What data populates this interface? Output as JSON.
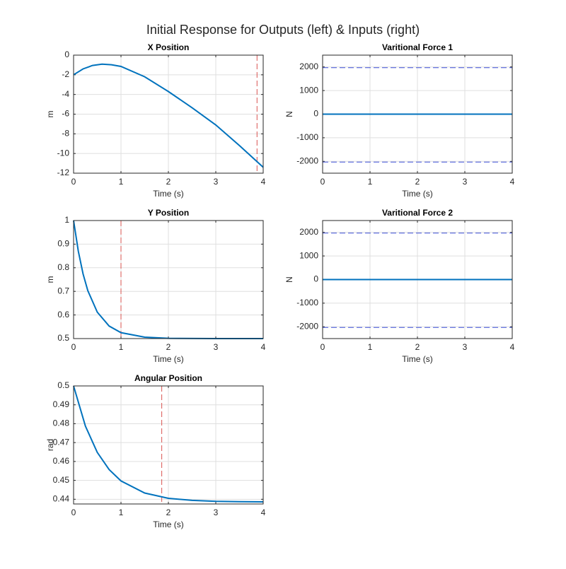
{
  "title": "Initial Response for Outputs (left) & Inputs (right)",
  "chart_data": [
    {
      "type": "line",
      "title": "X Position",
      "xlabel": "Time (s)",
      "ylabel": "m",
      "x": [
        0,
        0.2,
        0.4,
        0.6,
        0.8,
        1,
        1.5,
        2,
        2.5,
        3,
        3.5,
        4
      ],
      "series": [
        {
          "color": "#0072bd",
          "values": [
            -2,
            -1.4,
            -1.05,
            -0.92,
            -0.98,
            -1.15,
            -2.2,
            -3.7,
            -5.35,
            -7.1,
            -9.2,
            -11.4
          ]
        }
      ],
      "reference_lines": [
        {
          "axis": "x",
          "value": 3.87,
          "color": "#d9534f"
        }
      ],
      "xlim": [
        0,
        4
      ],
      "ylim": [
        -12,
        0
      ],
      "xticks": [
        0,
        1,
        2,
        3,
        4
      ],
      "yticks": [
        -12,
        -10,
        -8,
        -6,
        -4,
        -2,
        0
      ],
      "grid": true
    },
    {
      "type": "line",
      "title": "Varitional Force 1",
      "xlabel": "Time (s)",
      "ylabel": "N",
      "x": [
        0,
        4
      ],
      "series": [
        {
          "color": "#0072bd",
          "values": [
            0,
            0
          ]
        }
      ],
      "reference_lines": [
        {
          "axis": "y",
          "value": 1970,
          "color": "#3f51d9"
        },
        {
          "axis": "y",
          "value": -2030,
          "color": "#3f51d9"
        }
      ],
      "xlim": [
        0,
        4
      ],
      "ylim": [
        -2500,
        2500
      ],
      "xticks": [
        0,
        1,
        2,
        3,
        4
      ],
      "yticks": [
        -2000,
        -1000,
        0,
        1000,
        2000
      ],
      "grid": true
    },
    {
      "type": "line",
      "title": "Y Position",
      "xlabel": "Time (s)",
      "ylabel": "m",
      "x": [
        0,
        0.1,
        0.2,
        0.3,
        0.5,
        0.75,
        1,
        1.5,
        2,
        3,
        4
      ],
      "series": [
        {
          "color": "#0072bd",
          "values": [
            1,
            0.87,
            0.774,
            0.703,
            0.612,
            0.553,
            0.525,
            0.506,
            0.501,
            0.5,
            0.5
          ]
        }
      ],
      "reference_lines": [
        {
          "axis": "x",
          "value": 1,
          "color": "#d9534f"
        }
      ],
      "xlim": [
        0,
        4
      ],
      "ylim": [
        0.5,
        1
      ],
      "xticks": [
        0,
        1,
        2,
        3,
        4
      ],
      "yticks": [
        0.5,
        0.6,
        0.7,
        0.8,
        0.9,
        1
      ],
      "grid": true
    },
    {
      "type": "line",
      "title": "Varitional Force 2",
      "xlabel": "Time (s)",
      "ylabel": "N",
      "x": [
        0,
        4
      ],
      "series": [
        {
          "color": "#0072bd",
          "values": [
            0,
            0
          ]
        }
      ],
      "reference_lines": [
        {
          "axis": "y",
          "value": 1970,
          "color": "#3f51d9"
        },
        {
          "axis": "y",
          "value": -2030,
          "color": "#3f51d9"
        }
      ],
      "xlim": [
        0,
        4
      ],
      "ylim": [
        -2500,
        2500
      ],
      "xticks": [
        0,
        1,
        2,
        3,
        4
      ],
      "yticks": [
        -2000,
        -1000,
        0,
        1000,
        2000
      ],
      "grid": true
    },
    {
      "type": "line",
      "title": "Angular Position",
      "xlabel": "Time (s)",
      "ylabel": "rad",
      "x": [
        0,
        0.25,
        0.5,
        0.75,
        1,
        1.5,
        2,
        2.5,
        3,
        3.5,
        4
      ],
      "series": [
        {
          "color": "#0072bd",
          "values": [
            0.5,
            0.4787,
            0.4648,
            0.4557,
            0.4497,
            0.4433,
            0.4405,
            0.4394,
            0.4389,
            0.4387,
            0.4386
          ]
        }
      ],
      "reference_lines": [
        {
          "axis": "x",
          "value": 1.86,
          "color": "#d9534f"
        }
      ],
      "xlim": [
        0,
        4
      ],
      "ylim": [
        0.4375,
        0.5
      ],
      "xticks": [
        0,
        1,
        2,
        3,
        4
      ],
      "yticks": [
        0.44,
        0.45,
        0.46,
        0.47,
        0.48,
        0.49,
        0.5
      ],
      "grid": true
    }
  ]
}
